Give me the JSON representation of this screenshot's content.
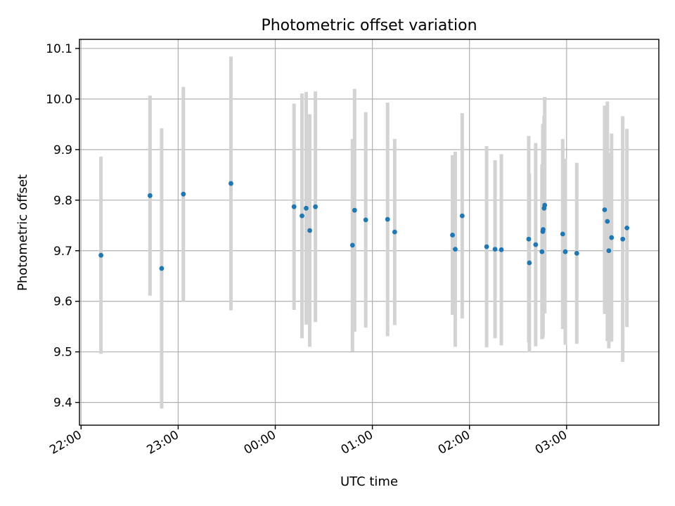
{
  "chart_data": {
    "type": "scatter",
    "title": "Photometric offset variation",
    "xlabel": "UTC time",
    "ylabel": "Photometric offset",
    "x_unit": "minutes since 22:00 UTC",
    "xlim": [
      -1,
      357
    ],
    "ylim": [
      9.355,
      10.118
    ],
    "grid": true,
    "x_ticks": [
      {
        "value": 0,
        "label": "22:00"
      },
      {
        "value": 60,
        "label": "23:00"
      },
      {
        "value": 120,
        "label": "00:00"
      },
      {
        "value": 180,
        "label": "01:00"
      },
      {
        "value": 240,
        "label": "02:00"
      },
      {
        "value": 300,
        "label": "03:00"
      }
    ],
    "y_ticks": [
      {
        "value": 9.4,
        "label": "9.4"
      },
      {
        "value": 9.5,
        "label": "9.5"
      },
      {
        "value": 9.6,
        "label": "9.6"
      },
      {
        "value": 9.7,
        "label": "9.7"
      },
      {
        "value": 9.8,
        "label": "9.8"
      },
      {
        "value": 9.9,
        "label": "9.9"
      },
      {
        "value": 10.0,
        "label": "10.0"
      },
      {
        "value": 10.1,
        "label": "10.1"
      }
    ],
    "series": [
      {
        "name": "offset",
        "marker_color": "#1f77b4",
        "errorbar_color": "#d3d3d3",
        "points": [
          {
            "x": 12.3,
            "y": 9.691,
            "err": 0.195
          },
          {
            "x": 42.6,
            "y": 9.809,
            "err": 0.198
          },
          {
            "x": 49.8,
            "y": 9.665,
            "err": 0.277
          },
          {
            "x": 63.2,
            "y": 9.812,
            "err": 0.212
          },
          {
            "x": 92.6,
            "y": 9.833,
            "err": 0.251
          },
          {
            "x": 131.6,
            "y": 9.787,
            "err": 0.204
          },
          {
            "x": 136.5,
            "y": 9.769,
            "err": 0.242
          },
          {
            "x": 139.1,
            "y": 9.784,
            "err": 0.23
          },
          {
            "x": 141.3,
            "y": 9.74,
            "err": 0.23
          },
          {
            "x": 144.8,
            "y": 9.787,
            "err": 0.228
          },
          {
            "x": 167.7,
            "y": 9.711,
            "err": 0.21
          },
          {
            "x": 169.0,
            "y": 9.78,
            "err": 0.24
          },
          {
            "x": 175.9,
            "y": 9.761,
            "err": 0.213
          },
          {
            "x": 189.4,
            "y": 9.762,
            "err": 0.231
          },
          {
            "x": 193.8,
            "y": 9.737,
            "err": 0.184
          },
          {
            "x": 229.5,
            "y": 9.731,
            "err": 0.158
          },
          {
            "x": 231.2,
            "y": 9.703,
            "err": 0.193
          },
          {
            "x": 235.5,
            "y": 9.769,
            "err": 0.203
          },
          {
            "x": 250.6,
            "y": 9.708,
            "err": 0.199
          },
          {
            "x": 255.8,
            "y": 9.703,
            "err": 0.176
          },
          {
            "x": 259.7,
            "y": 9.702,
            "err": 0.189
          },
          {
            "x": 276.6,
            "y": 9.723,
            "err": 0.204
          },
          {
            "x": 277.0,
            "y": 9.676,
            "err": 0.177
          },
          {
            "x": 280.9,
            "y": 9.712,
            "err": 0.201
          },
          {
            "x": 284.8,
            "y": 9.698,
            "err": 0.173
          },
          {
            "x": 285.3,
            "y": 9.738,
            "err": 0.211
          },
          {
            "x": 285.5,
            "y": 9.742,
            "err": 0.209
          },
          {
            "x": 286.1,
            "y": 9.784,
            "err": 0.183
          },
          {
            "x": 286.5,
            "y": 9.79,
            "err": 0.214
          },
          {
            "x": 297.6,
            "y": 9.733,
            "err": 0.188
          },
          {
            "x": 299.2,
            "y": 9.698,
            "err": 0.184
          },
          {
            "x": 306.3,
            "y": 9.695,
            "err": 0.179
          },
          {
            "x": 323.5,
            "y": 9.781,
            "err": 0.206
          },
          {
            "x": 325.2,
            "y": 9.758,
            "err": 0.237
          },
          {
            "x": 326.1,
            "y": 9.7,
            "err": 0.193
          },
          {
            "x": 327.8,
            "y": 9.726,
            "err": 0.206
          },
          {
            "x": 334.7,
            "y": 9.723,
            "err": 0.243
          },
          {
            "x": 337.3,
            "y": 9.745,
            "err": 0.196
          }
        ]
      }
    ]
  }
}
